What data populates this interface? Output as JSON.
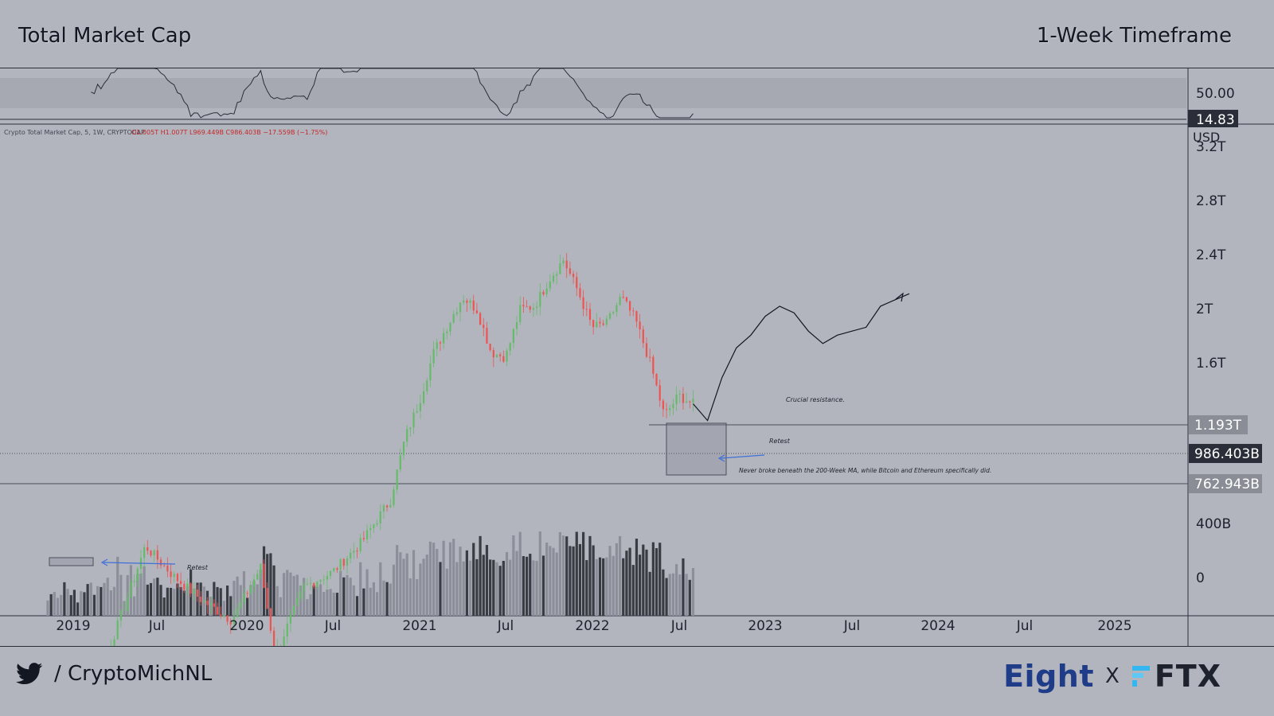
{
  "header": {
    "title_left": "Total Market Cap",
    "title_right": "1-Week Timeframe"
  },
  "footer": {
    "handle": "/ CryptoMichNL",
    "brand_eight": "Eight",
    "brand_x": "X",
    "brand_ftx": "FTX"
  },
  "colors": {
    "background": "#b2b5be",
    "up_candle": "#66bb6a",
    "down_candle": "#ef5350",
    "ma_line": "#e53935",
    "volume_dark": "#3a3c44",
    "volume_light": "#8c8f99",
    "retest_arrow": "#3f6fd8",
    "brand_eight": "#1f3c88",
    "brand_ftx_accent": "#34b7f1"
  },
  "chart_data": {
    "type": "candlestick",
    "symbol_info": "Crypto Total Market Cap, 5, 1W, CRYPTOCAP",
    "ohlc_info": "O1.005T  H1.007T  L969.449B  C986.403B  −17.559B (−1.75%)",
    "currency_label": "USD",
    "y_axis_ticks": [
      "3.2T",
      "2.8T",
      "2.4T",
      "2T",
      "1.6T",
      "400B",
      "0"
    ],
    "y_axis_scale": "log",
    "x_axis_ticks": [
      "2019",
      "Jul",
      "2020",
      "Jul",
      "2021",
      "Jul",
      "2022",
      "Jul",
      "2023",
      "Jul",
      "2024",
      "Jul",
      "2025"
    ],
    "price_labels": [
      {
        "label": "1.193T",
        "value": 1193,
        "style": "light"
      },
      {
        "label": "986.403B",
        "value": 986.4,
        "style": "dark"
      },
      {
        "label": "762.943B",
        "value": 762.9,
        "style": "light"
      }
    ],
    "rsi": {
      "labels": [
        "50.00",
        "14.83"
      ],
      "band": [
        30,
        70
      ]
    },
    "close_series_billions": {
      "dates": [
        "2018-11",
        "2019-01",
        "2019-03",
        "2019-05",
        "2019-06",
        "2019-08",
        "2019-10",
        "2019-12",
        "2020-02",
        "2020-03",
        "2020-05",
        "2020-07",
        "2020-09",
        "2020-11",
        "2020-12",
        "2021-01",
        "2021-02",
        "2021-04",
        "2021-05",
        "2021-06",
        "2021-07",
        "2021-08",
        "2021-09",
        "2021-10",
        "2021-11",
        "2021-12",
        "2022-01",
        "2022-02",
        "2022-03",
        "2022-04",
        "2022-05",
        "2022-06",
        "2022-07",
        "2022-08"
      ],
      "values": [
        130,
        125,
        135,
        250,
        340,
        270,
        225,
        195,
        290,
        150,
        250,
        280,
        350,
        480,
        760,
        1000,
        1450,
        2200,
        2000,
        1450,
        1400,
        2000,
        2050,
        2500,
        2900,
        2300,
        1750,
        1800,
        2200,
        1850,
        1350,
        900,
        1050,
        986
      ]
    },
    "projection_billions": {
      "dates": [
        "2022-09",
        "2022-10",
        "2022-11",
        "2022-12",
        "2023-01",
        "2023-02",
        "2023-03",
        "2023-04",
        "2023-05",
        "2023-06",
        "2023-07",
        "2023-08",
        "2023-09",
        "2023-10",
        "2023-11"
      ],
      "values": [
        870,
        1200,
        1500,
        1650,
        1900,
        2050,
        1950,
        1700,
        1550,
        1650,
        1700,
        1750,
        2050,
        2150,
        2250
      ]
    },
    "annotations": [
      {
        "text": "Crucial resistance."
      },
      {
        "text": "Retest"
      },
      {
        "text": "Never broke beneath the 200-Week MA, while Bitcoin and Ethereum specifically did."
      },
      {
        "text": "Retest"
      }
    ]
  }
}
